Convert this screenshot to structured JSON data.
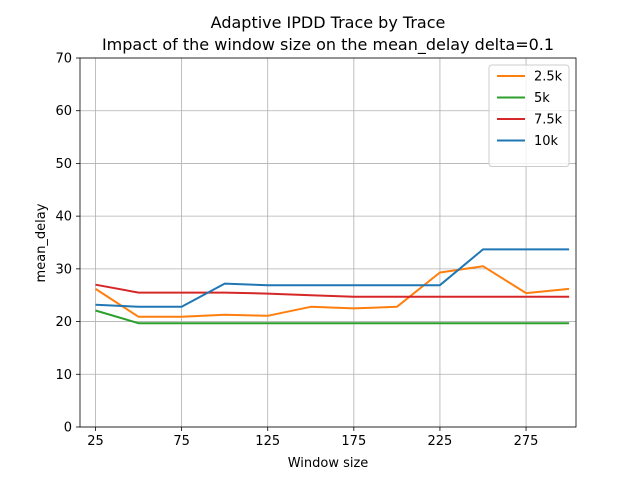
{
  "chart_data": {
    "type": "line",
    "title": "Adaptive IPDD Trace by Trace",
    "subtitle": "Impact of the window size on the mean_delay delta=0.1",
    "xlabel": "Window size",
    "ylabel": "mean_delay",
    "xlim": [
      16,
      304
    ],
    "ylim": [
      0,
      70
    ],
    "xticks": [
      25,
      75,
      125,
      175,
      225,
      275
    ],
    "yticks": [
      0,
      10,
      20,
      30,
      40,
      50,
      60,
      70
    ],
    "grid": true,
    "legend_position": "top-right",
    "x": [
      25,
      50,
      75,
      100,
      125,
      150,
      175,
      200,
      225,
      250,
      275,
      300
    ],
    "series": [
      {
        "name": "2.5k",
        "color": "#ff7f0e",
        "values": [
          26.2,
          20.9,
          20.9,
          21.3,
          21.1,
          22.8,
          22.5,
          22.8,
          29.3,
          30.5,
          25.4,
          26.2
        ]
      },
      {
        "name": "5k",
        "color": "#2ca02c",
        "values": [
          22.1,
          19.7,
          19.7,
          19.7,
          19.7,
          19.7,
          19.7,
          19.7,
          19.7,
          19.7,
          19.7,
          19.7
        ]
      },
      {
        "name": "7.5k",
        "color": "#d62728",
        "values": [
          27.0,
          25.5,
          25.5,
          25.5,
          25.3,
          25.0,
          24.7,
          24.7,
          24.7,
          24.7,
          24.7,
          24.7
        ]
      },
      {
        "name": "10k",
        "color": "#1f77b4",
        "values": [
          23.2,
          22.8,
          22.8,
          27.2,
          26.9,
          26.9,
          26.9,
          26.9,
          26.9,
          33.7,
          33.7,
          33.7
        ]
      }
    ]
  }
}
